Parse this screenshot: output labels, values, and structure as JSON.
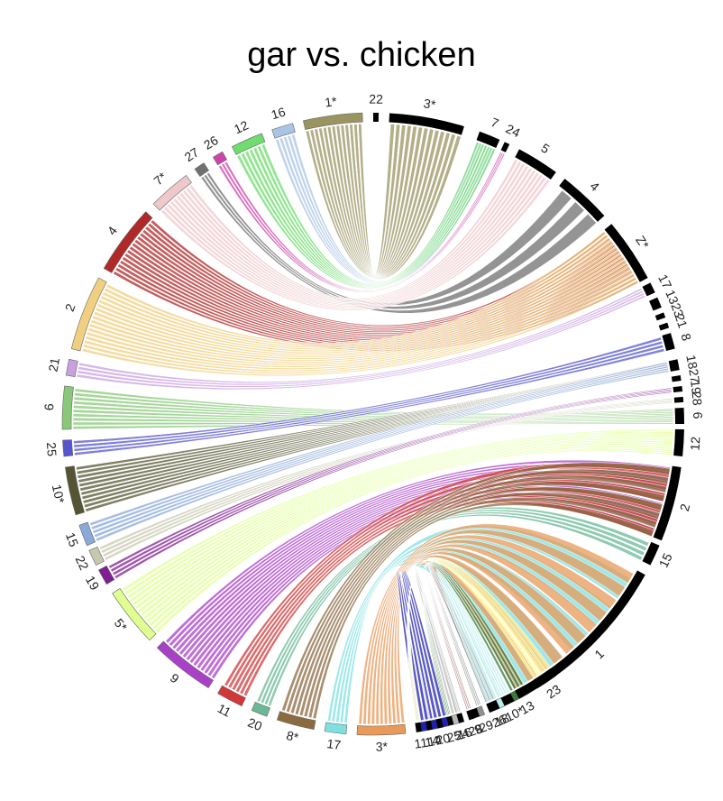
{
  "title": "gar vs. chicken",
  "left_segments": [
    {
      "label": "1*",
      "color": "#9a9460"
    },
    {
      "label": "16",
      "color": "#a9c4e4"
    },
    {
      "label": "12",
      "color": "#6fdc6f"
    },
    {
      "label": "26",
      "color": "#cc44aa"
    },
    {
      "label": "27",
      "color": "#707070"
    },
    {
      "label": "7*",
      "color": "#efc8cc"
    },
    {
      "label": "4",
      "color": "#b02828"
    },
    {
      "label": "2",
      "color": "#f0d080"
    },
    {
      "label": "21",
      "color": "#c8a0e0"
    },
    {
      "label": "6",
      "color": "#88c878"
    },
    {
      "label": "25",
      "color": "#5555cc"
    },
    {
      "label": "10*",
      "color": "#555533"
    },
    {
      "label": "15",
      "color": "#8aa8d8"
    },
    {
      "label": "22",
      "color": "#c8c8b0"
    },
    {
      "label": "19",
      "color": "#802090"
    },
    {
      "label": "5*",
      "color": "#e0ff90"
    },
    {
      "label": "9",
      "color": "#a840c8"
    },
    {
      "label": "11",
      "color": "#d03838"
    },
    {
      "label": "20",
      "color": "#6ab898"
    },
    {
      "label": "8*",
      "color": "#8a6a40"
    },
    {
      "label": "17",
      "color": "#80e0e0"
    },
    {
      "label": "3*",
      "color": "#e89a5a"
    },
    {
      "label": "14",
      "color": "#2020b0"
    },
    {
      "label": "24",
      "color": "#b8b8b8"
    },
    {
      "label": "28",
      "color": "#b08080"
    },
    {
      "label": "29",
      "color": "#909090"
    },
    {
      "label": "18",
      "color": "#b8ecec"
    },
    {
      "label": "13",
      "color": "#3a7a3a"
    },
    {
      "label": "23",
      "color": "#ffff90"
    }
  ],
  "right_segments": [
    {
      "label": "22"
    },
    {
      "label": "3*"
    },
    {
      "label": "7"
    },
    {
      "label": "24"
    },
    {
      "label": "5"
    },
    {
      "label": "4"
    },
    {
      "label": "Z*"
    },
    {
      "label": "17"
    },
    {
      "label": "13"
    },
    {
      "label": "23"
    },
    {
      "label": "21"
    },
    {
      "label": "8"
    },
    {
      "label": "18"
    },
    {
      "label": "27"
    },
    {
      "label": "19"
    },
    {
      "label": "28"
    },
    {
      "label": "6"
    },
    {
      "label": "12"
    },
    {
      "label": "2"
    },
    {
      "label": "15"
    },
    {
      "label": "1"
    },
    {
      "label": "10*"
    },
    {
      "label": "26"
    },
    {
      "label": "9"
    },
    {
      "label": "16"
    },
    {
      "label": "25"
    },
    {
      "label": "20"
    },
    {
      "label": "14"
    },
    {
      "label": "11"
    }
  ],
  "right_color": "#000000"
}
